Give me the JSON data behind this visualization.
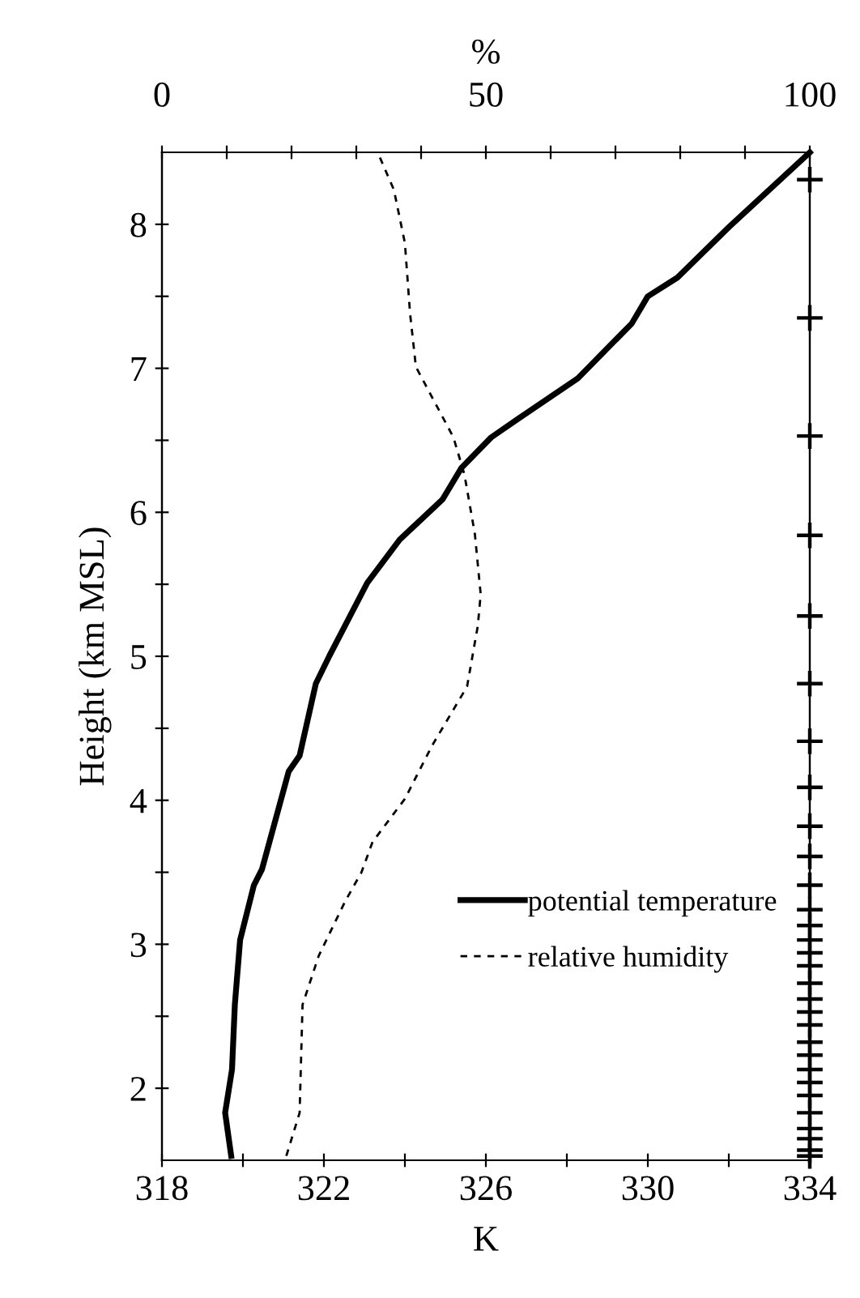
{
  "chart_data": {
    "type": "line",
    "xlabel": "K",
    "x2label": "%",
    "ylabel": "Height (km MSL)",
    "xlim": [
      318,
      334
    ],
    "xticks": [
      318,
      {
        "value": 320,
        "label": null
      },
      322,
      {
        "value": 324,
        "label": null
      },
      326,
      {
        "value": 328,
        "label": null
      },
      330,
      {
        "value": 332,
        "label": null
      },
      334
    ],
    "x2lim": [
      0,
      100
    ],
    "x2ticks": [
      0,
      {
        "value": 10,
        "label": null
      },
      {
        "value": 20,
        "label": null
      },
      {
        "value": 30,
        "label": null
      },
      {
        "value": 40,
        "label": null
      },
      50,
      {
        "value": 60,
        "label": null
      },
      {
        "value": 70,
        "label": null
      },
      {
        "value": 80,
        "label": null
      },
      {
        "value": 90,
        "label": null
      },
      100
    ],
    "ylim": [
      1.5,
      8.5
    ],
    "yticks": [
      2,
      {
        "value": 2.5,
        "label": null
      },
      3,
      {
        "value": 3.5,
        "label": null
      },
      4,
      {
        "value": 4.5,
        "label": null
      },
      5,
      {
        "value": 5.5,
        "label": null
      },
      6,
      {
        "value": 6.5,
        "label": null
      },
      7,
      {
        "value": 7.5,
        "label": null
      },
      8
    ],
    "legend": "bottom right",
    "grid": false,
    "series": [
      {
        "name": "potential temperature",
        "color": "#000000",
        "line_style": "solid",
        "x": [
          319.71,
          319.56,
          319.73,
          319.8,
          319.93,
          320.27,
          320.47,
          321.13,
          321.4,
          321.8,
          322.13,
          323.07,
          323.87,
          324.93,
          325.4,
          326.13,
          326.8,
          328.27,
          329.6,
          330.0,
          330.73,
          332.0,
          334.0
        ],
        "values": [
          1.53,
          1.83,
          2.13,
          2.58,
          3.03,
          3.41,
          3.52,
          4.2,
          4.31,
          4.81,
          5.0,
          5.51,
          5.81,
          6.09,
          6.31,
          6.52,
          6.65,
          6.93,
          7.31,
          7.5,
          7.63,
          7.98,
          8.5
        ]
      },
      {
        "name": "relative humidity",
        "color": "#000000",
        "line_style": "dashed",
        "axis": "x2",
        "x": [
          19.2,
          20.7,
          21.25,
          21.7,
          24.2,
          28.3,
          30.8,
          32.5,
          37.5,
          41.7,
          47.1,
          48.75,
          49.2,
          48.3,
          46.7,
          45.0,
          39.2,
          38.3,
          37.5,
          35.8,
          33.3
        ],
        "values": [
          1.53,
          1.75,
          1.83,
          2.58,
          2.92,
          3.3,
          3.5,
          3.71,
          4.01,
          4.38,
          4.79,
          5.21,
          5.43,
          5.85,
          6.26,
          6.52,
          7.01,
          7.38,
          7.87,
          8.24,
          8.5
        ]
      },
      {
        "type": "scatter",
        "marker": "cross",
        "color": "#000000",
        "x": [
          334,
          334,
          334,
          334,
          334,
          334,
          334,
          334,
          334,
          334,
          334,
          334,
          334,
          334,
          334,
          334,
          334,
          334,
          334,
          334,
          334,
          334,
          334,
          334,
          334,
          334,
          334,
          334,
          334,
          334
        ],
        "values": [
          8.31,
          7.35,
          6.53,
          5.84,
          5.28,
          4.81,
          4.41,
          4.09,
          3.82,
          3.61,
          3.41,
          3.24,
          3.13,
          3.03,
          2.94,
          2.85,
          2.73,
          2.62,
          2.53,
          2.44,
          2.32,
          2.23,
          2.13,
          2.04,
          1.95,
          1.83,
          1.72,
          1.65,
          1.57,
          1.53
        ]
      }
    ]
  }
}
